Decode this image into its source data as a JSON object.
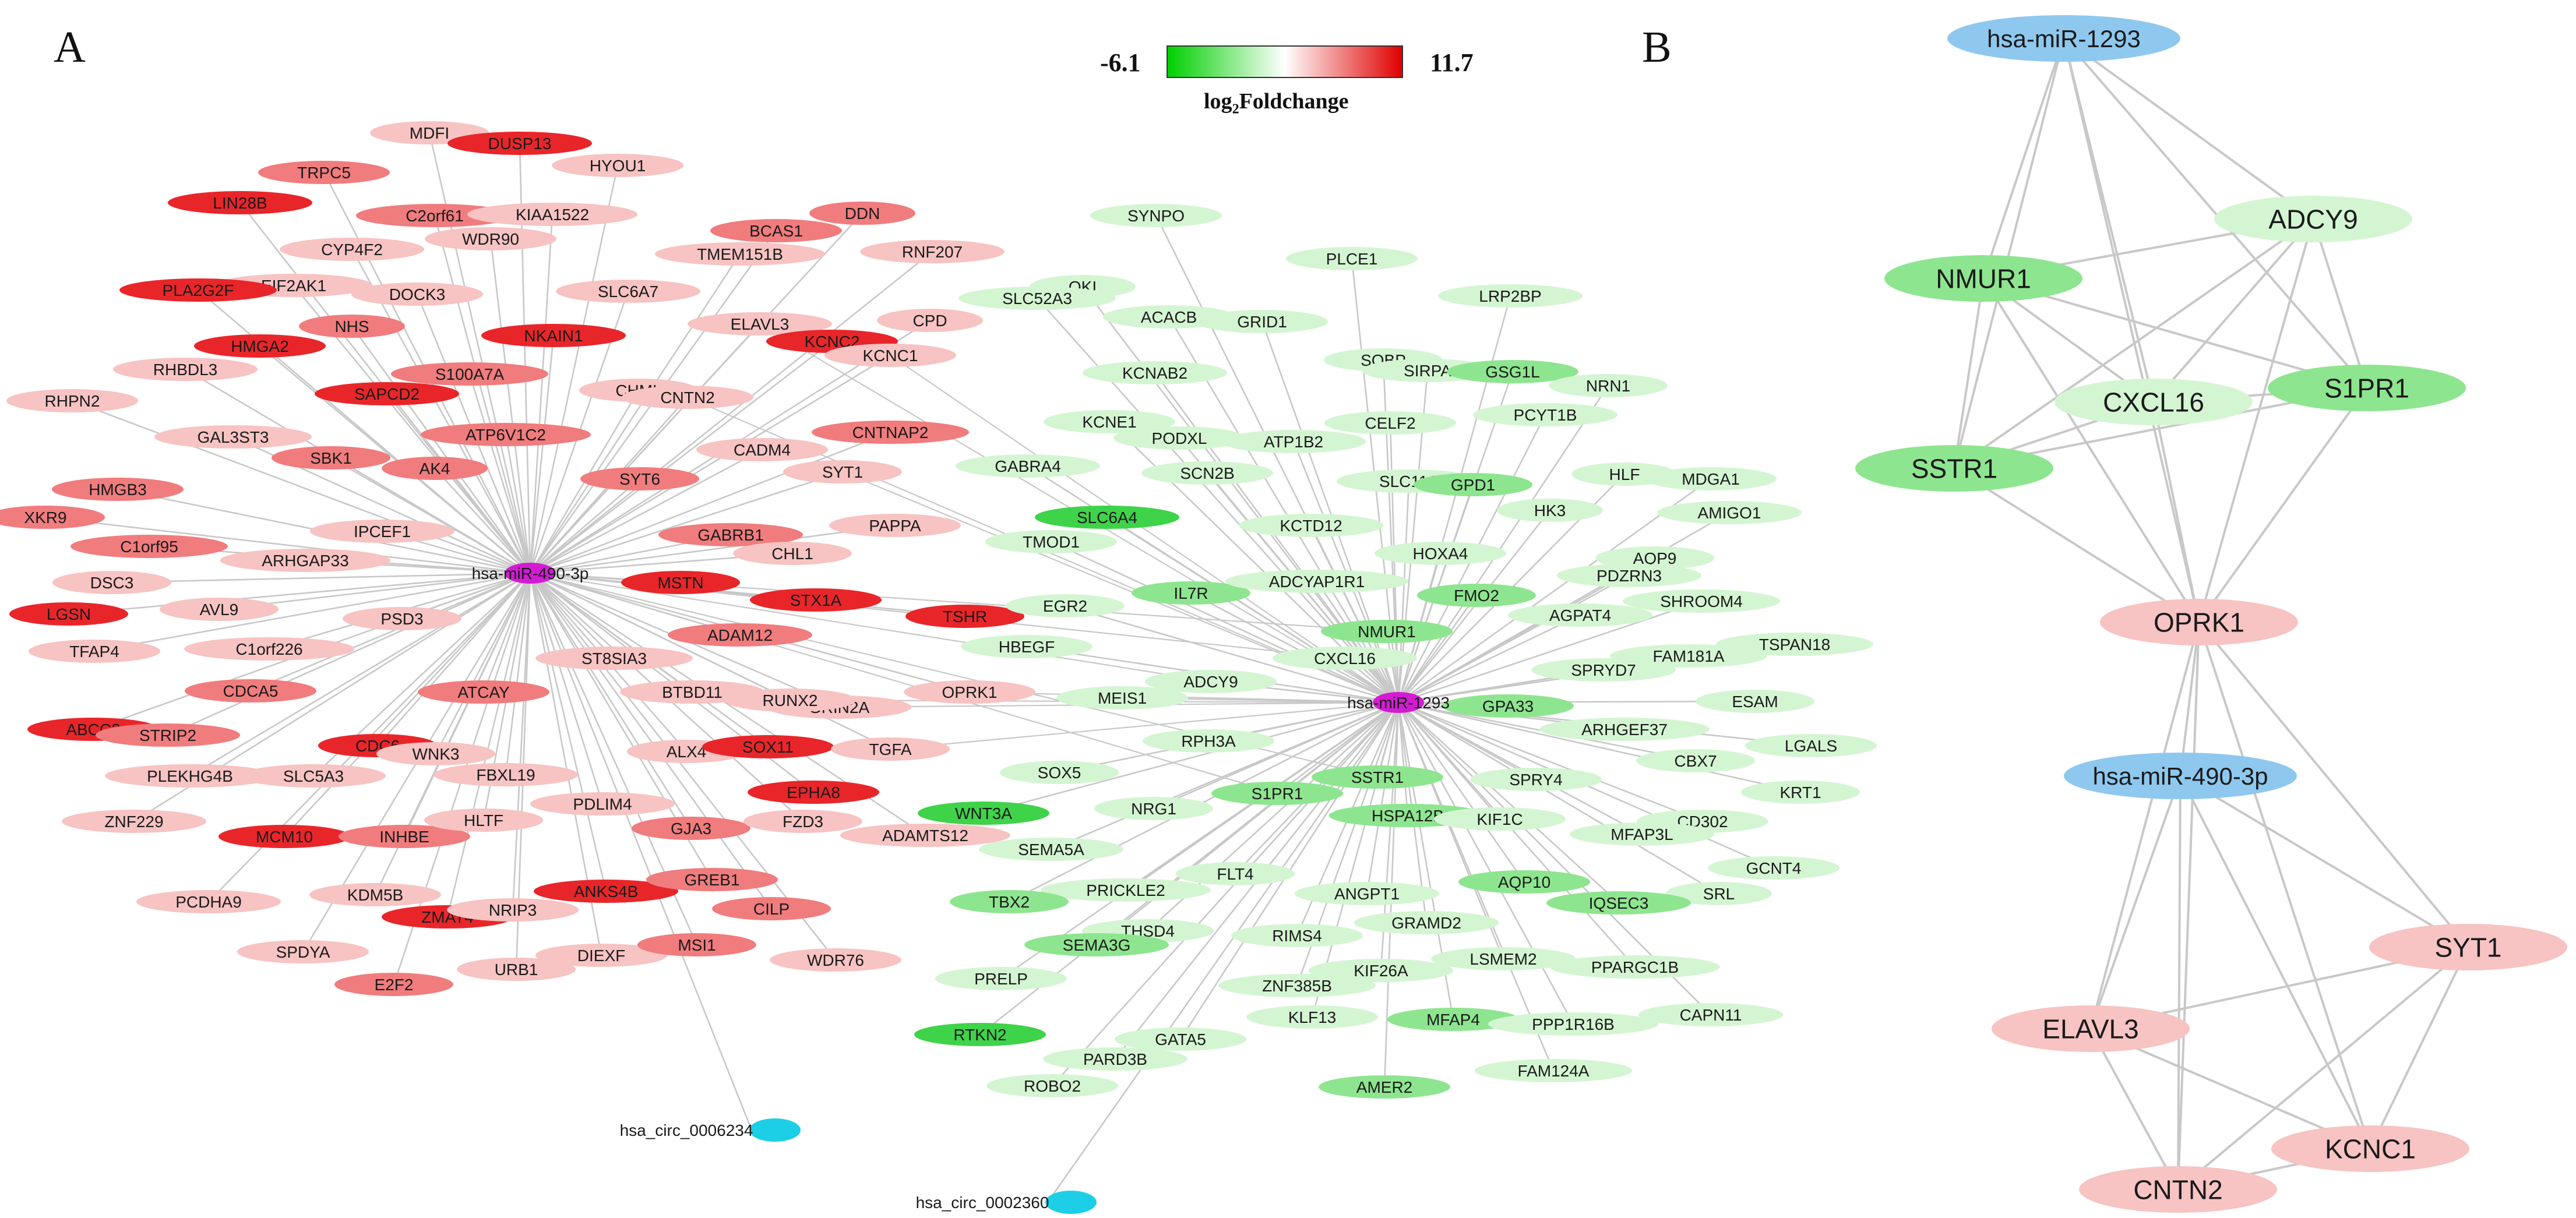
{
  "panels": {
    "a": "A",
    "b": "B"
  },
  "legend": {
    "min": "-6.1",
    "max": "11.7",
    "title_main": "log",
    "title_sub": "2",
    "title_rest": "Foldchange",
    "colors": {
      "low": "#00d000",
      "mid": "#ffffff",
      "high": "#e00000"
    }
  },
  "palette": {
    "red": "#e8262a",
    "red_mid": "#f07c7e",
    "red_light": "#f7c3c3",
    "green": "#3fd34a",
    "green_mid": "#8ee58f",
    "green_light": "#d4f5d2",
    "mirna_a": "#d41bd4",
    "circ": "#1ccfe6",
    "mirna_b": "#8ec8ef",
    "edge": "#c8c8c8"
  },
  "network_a": {
    "hubs": [
      {
        "id": "hsa-miR-490-3p",
        "label": "hsa-miR-490-3p"
      },
      {
        "id": "hsa-miR-1293",
        "label": "hsa-miR-1293"
      }
    ],
    "circs": [
      {
        "label": "hsa_circ_0006234",
        "hub": "hsa-miR-490-3p"
      },
      {
        "label": "hsa_circ_0002360",
        "hub": "hsa-miR-1293"
      }
    ],
    "genes": [
      {
        "label": "MDFI",
        "c": "r3"
      },
      {
        "label": "DUSP13",
        "c": "r1"
      },
      {
        "label": "HYOU1",
        "c": "r3"
      },
      {
        "label": "TRPC5",
        "c": "r2"
      },
      {
        "label": "C2orf61",
        "c": "r2"
      },
      {
        "label": "KIAA1522",
        "c": "r3"
      },
      {
        "label": "LIN28B",
        "c": "r1"
      },
      {
        "label": "CYP4F2",
        "c": "r3"
      },
      {
        "label": "WDR90",
        "c": "r3"
      },
      {
        "label": "EIF2AK1",
        "c": "r3"
      },
      {
        "label": "DOCK3",
        "c": "r3"
      },
      {
        "label": "PLA2G2F",
        "c": "r1"
      },
      {
        "label": "NHS",
        "c": "r2"
      },
      {
        "label": "SLC6A7",
        "c": "r3"
      },
      {
        "label": "RHBDL3",
        "c": "r3"
      },
      {
        "label": "HMGA2",
        "c": "r1"
      },
      {
        "label": "S100A7A",
        "c": "r2"
      },
      {
        "label": "NKAIN1",
        "c": "r1"
      },
      {
        "label": "SAPCD2",
        "c": "r1"
      },
      {
        "label": "RHPN2",
        "c": "r3"
      },
      {
        "label": "GAL3ST3",
        "c": "r3"
      },
      {
        "label": "ATP6V1C2",
        "c": "r2"
      },
      {
        "label": "SBK1",
        "c": "r2"
      },
      {
        "label": "AK4",
        "c": "r2"
      },
      {
        "label": "HMGB3",
        "c": "r2"
      },
      {
        "label": "XKR9",
        "c": "r2"
      },
      {
        "label": "C1orf95",
        "c": "r2"
      },
      {
        "label": "IPCEF1",
        "c": "r3"
      },
      {
        "label": "ARHGAP33",
        "c": "r3"
      },
      {
        "label": "DSC3",
        "c": "r3"
      },
      {
        "label": "AVL9",
        "c": "r3"
      },
      {
        "label": "LGSN",
        "c": "r1"
      },
      {
        "label": "TFAP4",
        "c": "r3"
      },
      {
        "label": "C1orf226",
        "c": "r3"
      },
      {
        "label": "PSD3",
        "c": "r3"
      },
      {
        "label": "CDCA5",
        "c": "r2"
      },
      {
        "label": "ABCC2",
        "c": "r1"
      },
      {
        "label": "STRIP2",
        "c": "r2"
      },
      {
        "label": "CDC6",
        "c": "r1"
      },
      {
        "label": "WNK3",
        "c": "r3"
      },
      {
        "label": "PLEKHG4B",
        "c": "r3"
      },
      {
        "label": "SLC5A3",
        "c": "r3"
      },
      {
        "label": "FBXL19",
        "c": "r3"
      },
      {
        "label": "ZNF229",
        "c": "r3"
      },
      {
        "label": "MCM10",
        "c": "r1"
      },
      {
        "label": "INHBE",
        "c": "r2"
      },
      {
        "label": "HLTF",
        "c": "r3"
      },
      {
        "label": "KDM5B",
        "c": "r3"
      },
      {
        "label": "PCDHA9",
        "c": "r3"
      },
      {
        "label": "ZMAT4",
        "c": "r1"
      },
      {
        "label": "NRIP3",
        "c": "r3"
      },
      {
        "label": "SPDYA",
        "c": "r3"
      },
      {
        "label": "E2F2",
        "c": "r2"
      },
      {
        "label": "URB1",
        "c": "r3"
      },
      {
        "label": "DIEXF",
        "c": "r3"
      },
      {
        "label": "ATCAY",
        "c": "r2"
      },
      {
        "label": "MSTN",
        "c": "r1"
      },
      {
        "label": "ADAM12",
        "c": "r2"
      },
      {
        "label": "ST8SIA3",
        "c": "r3"
      },
      {
        "label": "BTBD11",
        "c": "r3"
      },
      {
        "label": "ALX4",
        "c": "r3"
      },
      {
        "label": "SOX11",
        "c": "r1"
      },
      {
        "label": "PDLIM4",
        "c": "r3"
      },
      {
        "label": "EPHA8",
        "c": "r1"
      },
      {
        "label": "GJA3",
        "c": "r2"
      },
      {
        "label": "ANKS4B",
        "c": "r1"
      },
      {
        "label": "GREB1",
        "c": "r2"
      },
      {
        "label": "CILP",
        "c": "r2"
      },
      {
        "label": "MSI1",
        "c": "r2"
      },
      {
        "label": "FZD3",
        "c": "r3"
      },
      {
        "label": "WDR76",
        "c": "r3"
      },
      {
        "label": "ADAMTS12",
        "c": "r3"
      },
      {
        "label": "DDN",
        "c": "r2"
      },
      {
        "label": "BCAS1",
        "c": "r2"
      },
      {
        "label": "RNF207",
        "c": "r3"
      },
      {
        "label": "TMEM151B",
        "c": "r3"
      },
      {
        "label": "ELAVL3",
        "c": "r3"
      },
      {
        "label": "KCNC2",
        "c": "r1"
      },
      {
        "label": "CPD",
        "c": "r3"
      },
      {
        "label": "KCNC1",
        "c": "r3"
      },
      {
        "label": "CHML",
        "c": "r3"
      },
      {
        "label": "CNTN2",
        "c": "r3"
      },
      {
        "label": "CNTNAP2",
        "c": "r2"
      },
      {
        "label": "CADM4",
        "c": "r3"
      },
      {
        "label": "SYT1",
        "c": "r3"
      },
      {
        "label": "SYT6",
        "c": "r2"
      },
      {
        "label": "PAPPA",
        "c": "r3"
      },
      {
        "label": "GABRB1",
        "c": "r2"
      },
      {
        "label": "CHL1",
        "c": "r3"
      },
      {
        "label": "STX1A",
        "c": "r1"
      },
      {
        "label": "TSHR",
        "c": "r1"
      },
      {
        "label": "GRIN2A",
        "c": "r3"
      },
      {
        "label": "RUNX2",
        "c": "r3"
      },
      {
        "label": "OPRK1",
        "c": "r3"
      },
      {
        "label": "TGFA",
        "c": "r3"
      },
      {
        "label": "SYNPO",
        "c": "g3"
      },
      {
        "label": "PLCE1",
        "c": "g3"
      },
      {
        "label": "QKI",
        "c": "g3"
      },
      {
        "label": "SLC52A3",
        "c": "g3"
      },
      {
        "label": "ACACB",
        "c": "g3"
      },
      {
        "label": "GRID1",
        "c": "g3"
      },
      {
        "label": "LRP2BP",
        "c": "g3"
      },
      {
        "label": "SOBP",
        "c": "g3"
      },
      {
        "label": "SIRPA",
        "c": "g3"
      },
      {
        "label": "GSG1L",
        "c": "g2"
      },
      {
        "label": "NRN1",
        "c": "g3"
      },
      {
        "label": "KCNAB2",
        "c": "g3"
      },
      {
        "label": "CELF2",
        "c": "g3"
      },
      {
        "label": "PCYT1B",
        "c": "g3"
      },
      {
        "label": "KCNE1",
        "c": "g3"
      },
      {
        "label": "PODXL",
        "c": "g3"
      },
      {
        "label": "ATP1B2",
        "c": "g3"
      },
      {
        "label": "SLC11A",
        "c": "g3"
      },
      {
        "label": "GPD1",
        "c": "g2"
      },
      {
        "label": "HLF",
        "c": "g3"
      },
      {
        "label": "MDGA1",
        "c": "g3"
      },
      {
        "label": "GABRA4",
        "c": "g3"
      },
      {
        "label": "SCN2B",
        "c": "g3"
      },
      {
        "label": "SLC6A4",
        "c": "g1"
      },
      {
        "label": "KCTD12",
        "c": "g3"
      },
      {
        "label": "HK3",
        "c": "g3"
      },
      {
        "label": "AMIGO1",
        "c": "g3"
      },
      {
        "label": "TMOD1",
        "c": "g3"
      },
      {
        "label": "HOXA4",
        "c": "g3"
      },
      {
        "label": "AQP9",
        "c": "g3"
      },
      {
        "label": "PDZRN3",
        "c": "g3"
      },
      {
        "label": "IL7R",
        "c": "g2"
      },
      {
        "label": "ADCYAP1R1",
        "c": "g3"
      },
      {
        "label": "FMO2",
        "c": "g2"
      },
      {
        "label": "SHROOM4",
        "c": "g3"
      },
      {
        "label": "EGR2",
        "c": "g3"
      },
      {
        "label": "AGPAT4",
        "c": "g3"
      },
      {
        "label": "NMUR1",
        "c": "g2"
      },
      {
        "label": "TSPAN18",
        "c": "g3"
      },
      {
        "label": "HBEGF",
        "c": "g3"
      },
      {
        "label": "SPRYD7",
        "c": "g3"
      },
      {
        "label": "FAM181A",
        "c": "g3"
      },
      {
        "label": "CXCL16",
        "c": "g3"
      },
      {
        "label": "ADCY9",
        "c": "g3"
      },
      {
        "label": "MEIS1",
        "c": "g3"
      },
      {
        "label": "GPA33",
        "c": "g2"
      },
      {
        "label": "ESAM",
        "c": "g3"
      },
      {
        "label": "ARHGEF37",
        "c": "g3"
      },
      {
        "label": "LGALS",
        "c": "g3"
      },
      {
        "label": "RPH3A",
        "c": "g3"
      },
      {
        "label": "CBX7",
        "c": "g3"
      },
      {
        "label": "SOX5",
        "c": "g3"
      },
      {
        "label": "SSTR1",
        "c": "g2"
      },
      {
        "label": "S1PR1",
        "c": "g2"
      },
      {
        "label": "KRT1",
        "c": "g3"
      },
      {
        "label": "SPRY4",
        "c": "g3"
      },
      {
        "label": "NRG1",
        "c": "g3"
      },
      {
        "label": "WNT3A",
        "c": "g1"
      },
      {
        "label": "HSPA12B",
        "c": "g2"
      },
      {
        "label": "KIF1C",
        "c": "g3"
      },
      {
        "label": "CD302",
        "c": "g3"
      },
      {
        "label": "MFAP3L",
        "c": "g3"
      },
      {
        "label": "SEMA5A",
        "c": "g3"
      },
      {
        "label": "GCNT4",
        "c": "g3"
      },
      {
        "label": "FLT4",
        "c": "g3"
      },
      {
        "label": "SRL",
        "c": "g3"
      },
      {
        "label": "PRICKLE2",
        "c": "g3"
      },
      {
        "label": "AQP10",
        "c": "g2"
      },
      {
        "label": "TBX2",
        "c": "g2"
      },
      {
        "label": "ANGPT1",
        "c": "g3"
      },
      {
        "label": "IQSEC3",
        "c": "g2"
      },
      {
        "label": "GRAMD2",
        "c": "g3"
      },
      {
        "label": "THSD4",
        "c": "g3"
      },
      {
        "label": "SEMA3G",
        "c": "g2"
      },
      {
        "label": "LSMEM2",
        "c": "g3"
      },
      {
        "label": "RIMS4",
        "c": "g3"
      },
      {
        "label": "PPARGC1B",
        "c": "g3"
      },
      {
        "label": "ZNF385B",
        "c": "g3"
      },
      {
        "label": "KIF26A",
        "c": "g3"
      },
      {
        "label": "PRELP",
        "c": "g3"
      },
      {
        "label": "CAPN11",
        "c": "g3"
      },
      {
        "label": "MFAP4",
        "c": "g2"
      },
      {
        "label": "KLF13",
        "c": "g3"
      },
      {
        "label": "PPP1R16B",
        "c": "g3"
      },
      {
        "label": "RTKN2",
        "c": "g1"
      },
      {
        "label": "GATA5",
        "c": "g3"
      },
      {
        "label": "PARD3B",
        "c": "g3"
      },
      {
        "label": "FAM124A",
        "c": "g3"
      },
      {
        "label": "ROBO2",
        "c": "g3"
      },
      {
        "label": "AMER2",
        "c": "g2"
      }
    ]
  },
  "network_b": {
    "modules": [
      {
        "mirna": "hsa-miR-1293",
        "genes": [
          {
            "label": "ADCY9",
            "c": "g3"
          },
          {
            "label": "NMUR1",
            "c": "g2"
          },
          {
            "label": "CXCL16",
            "c": "g3"
          },
          {
            "label": "S1PR1",
            "c": "g2"
          },
          {
            "label": "SSTR1",
            "c": "g2"
          }
        ]
      },
      {
        "mirna": "hsa-miR-490-3p",
        "genes": [
          {
            "label": "SYT1",
            "c": "r3"
          },
          {
            "label": "ELAVL3",
            "c": "r3"
          },
          {
            "label": "KCNC1",
            "c": "r3"
          },
          {
            "label": "CNTN2",
            "c": "r3"
          }
        ]
      }
    ],
    "bridge": {
      "label": "OPRK1",
      "c": "r3"
    }
  }
}
